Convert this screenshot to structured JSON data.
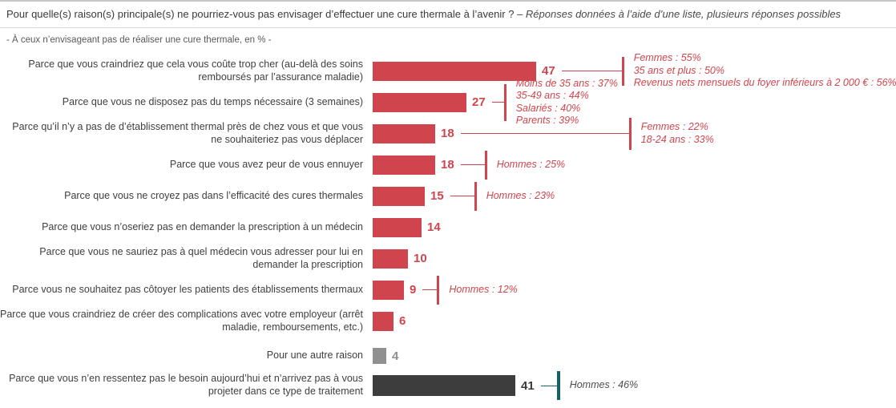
{
  "header": {
    "title_main": "Pour quelle(s) raison(s) principale(s) ne pourriez-vous pas envisager d’effectuer une cure thermale à l’avenir ?",
    "title_note": " – Réponses données à l’aide d’une liste, plusieurs réponses possibles",
    "subtitle": "- À ceux n’envisageant pas de réaliser une cure thermale, en % -"
  },
  "colors": {
    "bar_red": "#d0454d",
    "bar_gray": "#909090",
    "bar_dark": "#3d3d3d",
    "tick_teal": "#14606c",
    "annotation_red": "#d0454d",
    "annotation_dark": "#4d4d4d"
  },
  "chart_data": {
    "type": "bar",
    "orientation": "horizontal",
    "unit": "%",
    "xlim": [
      0,
      50
    ],
    "grid": false,
    "legend": "none",
    "title": "Pour quelle(s) raison(s) principale(s) ne pourriez-vous pas envisager d’effectuer une cure thermale à l’avenir ? – Réponses données à l’aide d’une liste, plusieurs réponses possibles",
    "subtitle": "- À ceux n’envisageant pas de réaliser une cure thermale, en % -",
    "categories": [
      "Parce que vous craindriez que cela vous coûte trop cher (au-delà des soins remboursés par l’assurance maladie)",
      "Parce que vous ne disposez pas du temps nécessaire (3 semaines)",
      "Parce qu’il n’y a pas de d’établissement thermal près de chez vous et que vous ne souhaiteriez pas vous déplacer",
      "Parce que vous avez peur de vous ennuyer",
      "Parce que vous ne croyez pas dans l’efficacité des cures thermales",
      "Parce que vous n’oseriez pas en demander la prescription à un médecin",
      "Parce que vous ne sauriez pas à quel médecin vous adresser pour lui en demander la prescription",
      "Parce vous ne souhaitez pas côtoyer les patients des établissements thermaux",
      "Parce que vous craindriez de créer des complications avec votre employeur (arrêt maladie, remboursements, etc.)",
      "Pour une autre raison",
      "Parce que vous n’en ressentez pas le besoin aujourd’hui et n’arrivez pas à vous projeter dans ce type de traitement"
    ],
    "values": [
      47,
      27,
      18,
      18,
      15,
      14,
      10,
      9,
      6,
      4,
      41
    ],
    "rows": [
      {
        "label": "Parce que vous craindriez que cela vous coûte trop cher (au-delà des soins remboursés par l’assurance maladie)",
        "value": 47,
        "color": "red",
        "ann": [
          "Femmes : 55%",
          "35 ans et plus : 50%",
          "Revenus nets mensuels du foyer inférieurs à 2 000 € : 56%"
        ]
      },
      {
        "label": "Parce que vous ne disposez pas du temps nécessaire (3 semaines)",
        "value": 27,
        "color": "red",
        "ann": [
          "Moins de 35 ans : 37%",
          "35-49 ans : 44%",
          "Salariés : 40%",
          "Parents : 39%"
        ]
      },
      {
        "label": "Parce qu’il n’y a pas de d’établissement thermal près de chez vous et que vous ne souhaiteriez pas vous déplacer",
        "value": 18,
        "color": "red",
        "ann": [
          "Femmes : 22%",
          "18-24 ans : 33%"
        ]
      },
      {
        "label": "Parce que vous avez peur de vous ennuyer",
        "value": 18,
        "color": "red",
        "ann": [
          "Hommes : 25%"
        ]
      },
      {
        "label": "Parce que vous ne croyez pas dans l’efficacité des cures thermales",
        "value": 15,
        "color": "red",
        "ann": [
          "Hommes : 23%"
        ]
      },
      {
        "label": "Parce que vous n’oseriez pas en demander la prescription à un médecin",
        "value": 14,
        "color": "red",
        "ann": []
      },
      {
        "label": "Parce que vous ne sauriez pas à quel médecin vous adresser pour lui en demander la prescription",
        "value": 10,
        "color": "red",
        "ann": []
      },
      {
        "label": "Parce vous ne souhaitez pas côtoyer les patients des établissements thermaux",
        "value": 9,
        "color": "red",
        "ann": [
          "Hommes : 12%"
        ]
      },
      {
        "label": "Parce que vous craindriez de créer des complications avec votre employeur (arrêt maladie, remboursements, etc.)",
        "value": 6,
        "color": "red",
        "ann": []
      },
      {
        "label": "Pour une autre raison",
        "value": 4,
        "color": "gray",
        "ann": []
      },
      {
        "label": "Parce que vous n’en ressentez pas le besoin aujourd’hui et n’arrivez pas à vous projeter dans ce type de traitement",
        "value": 41,
        "color": "dark",
        "ann": [
          "Hommes : 46%"
        ]
      }
    ]
  }
}
